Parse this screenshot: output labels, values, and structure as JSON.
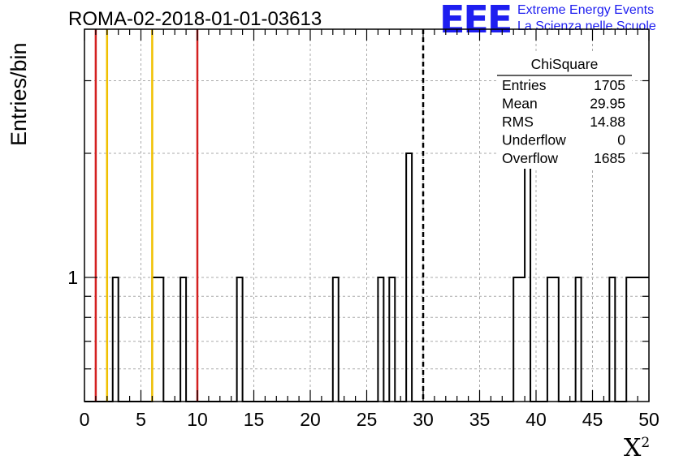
{
  "title": "ROMA-02-2018-01-01-03613",
  "logo": {
    "mark": "EEE",
    "line1": "Extreme Energy Events",
    "line2": "La Scienza nelle Scuole"
  },
  "stats": {
    "name": "ChiSquare",
    "rows": [
      {
        "label": "Entries",
        "value": "1705"
      },
      {
        "label": "Mean",
        "value": "29.95"
      },
      {
        "label": "RMS",
        "value": "14.88"
      },
      {
        "label": "Underflow",
        "value": "0"
      },
      {
        "label": "Overflow",
        "value": "1685"
      }
    ]
  },
  "chart_data": {
    "type": "bar",
    "histogram": true,
    "ylabel": "Entries/bin",
    "xlabel": "X",
    "xlabel_superscript": "2",
    "xlim": [
      0,
      50
    ],
    "ylim": [
      0.5,
      4.0
    ],
    "log_y": true,
    "bin_width": 0.5,
    "x_ticks": [
      0,
      5,
      10,
      15,
      20,
      25,
      30,
      35,
      40,
      45,
      50
    ],
    "y_tick_labels": [
      {
        "value": 1,
        "label": "1"
      }
    ],
    "grid": true,
    "bins": [
      {
        "x": 2.5,
        "count": 1
      },
      {
        "x": 6.0,
        "count": 1
      },
      {
        "x": 6.5,
        "count": 1
      },
      {
        "x": 8.5,
        "count": 1
      },
      {
        "x": 13.5,
        "count": 1
      },
      {
        "x": 22.0,
        "count": 1
      },
      {
        "x": 26.0,
        "count": 1
      },
      {
        "x": 27.0,
        "count": 1
      },
      {
        "x": 28.5,
        "count": 2
      },
      {
        "x": 38.0,
        "count": 1
      },
      {
        "x": 38.5,
        "count": 1
      },
      {
        "x": 39.0,
        "count": 2
      },
      {
        "x": 41.0,
        "count": 1
      },
      {
        "x": 41.5,
        "count": 1
      },
      {
        "x": 43.5,
        "count": 1
      },
      {
        "x": 46.5,
        "count": 1
      },
      {
        "x": 48.0,
        "count": 1
      },
      {
        "x": 48.5,
        "count": 1
      },
      {
        "x": 49.0,
        "count": 1
      },
      {
        "x": 49.5,
        "count": 1
      }
    ],
    "vertical_lines": [
      {
        "x": 1,
        "color": "#d42020",
        "style": "solid"
      },
      {
        "x": 2,
        "color": "#f0c000",
        "style": "solid"
      },
      {
        "x": 6,
        "color": "#f0c000",
        "style": "solid"
      },
      {
        "x": 10,
        "color": "#d42020",
        "style": "solid"
      },
      {
        "x": 30,
        "color": "#000000",
        "style": "dashed"
      }
    ]
  }
}
